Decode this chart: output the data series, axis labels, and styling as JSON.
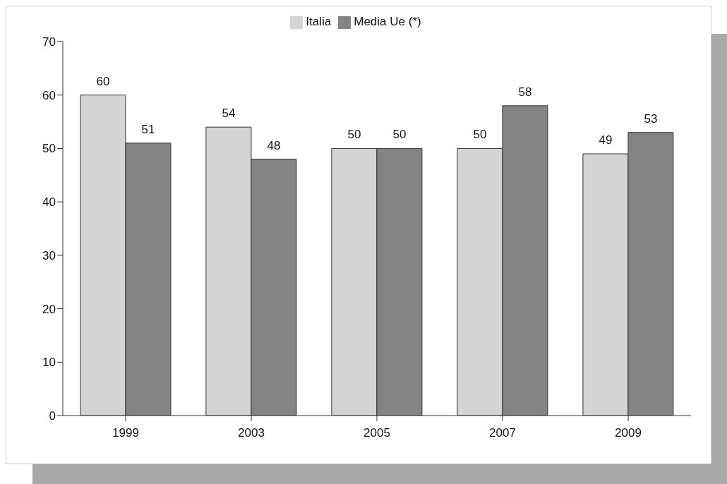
{
  "chart_data": {
    "type": "bar",
    "categories": [
      "1999",
      "2003",
      "2005",
      "2007",
      "2009"
    ],
    "series": [
      {
        "name": "Italia",
        "color": "#d4d4d4",
        "values": [
          60,
          54,
          50,
          50,
          49
        ]
      },
      {
        "name": "Media Ue (*)",
        "color": "#848484",
        "values": [
          51,
          48,
          50,
          58,
          53
        ]
      }
    ],
    "ylim": [
      0,
      70
    ],
    "yticks": [
      0,
      10,
      20,
      30,
      40,
      50,
      60,
      70
    ],
    "grid": false,
    "legend": "top",
    "data_labels": true
  }
}
